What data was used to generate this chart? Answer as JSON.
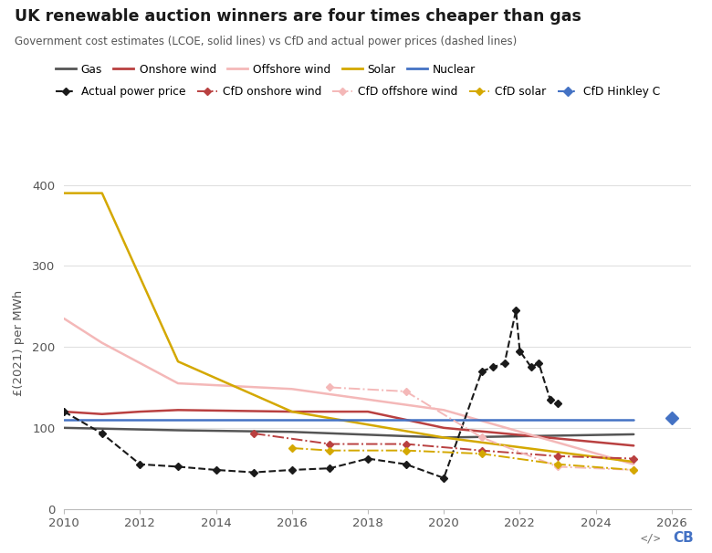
{
  "title": "UK renewable auction winners are four times cheaper than gas",
  "subtitle": "Government cost estimates (LCOE, solid lines) vs CfD and actual power prices (dashed lines)",
  "ylabel": "£(2021) per MWh",
  "xlim": [
    2010,
    2026.5
  ],
  "ylim": [
    0,
    410
  ],
  "yticks": [
    0,
    100,
    200,
    300,
    400
  ],
  "xticks": [
    2010,
    2012,
    2014,
    2016,
    2018,
    2020,
    2022,
    2024,
    2026
  ],
  "gas": {
    "x": [
      2010,
      2013,
      2016,
      2020,
      2025
    ],
    "y": [
      100,
      97,
      95,
      88,
      92
    ],
    "color": "#555555",
    "lw": 1.8
  },
  "onshore_wind": {
    "x": [
      2010,
      2011,
      2012,
      2013,
      2016,
      2018,
      2020,
      2025
    ],
    "y": [
      120,
      117,
      120,
      122,
      120,
      120,
      100,
      78
    ],
    "color": "#b94040",
    "lw": 1.8
  },
  "offshore_wind": {
    "x": [
      2010,
      2011,
      2012,
      2013,
      2016,
      2020,
      2025
    ],
    "y": [
      235,
      205,
      180,
      155,
      148,
      122,
      55
    ],
    "color": "#f4b8b8",
    "lw": 1.8
  },
  "solar": {
    "x": [
      2010,
      2011,
      2013,
      2016,
      2020,
      2025
    ],
    "y": [
      390,
      390,
      182,
      120,
      88,
      58
    ],
    "color": "#d4a800",
    "lw": 1.8
  },
  "nuclear": {
    "x": [
      2010,
      2025
    ],
    "y": [
      110,
      110
    ],
    "color": "#4472c4",
    "lw": 1.8
  },
  "actual_power_price": {
    "x": [
      2010,
      2011,
      2012,
      2013,
      2014,
      2015,
      2016,
      2017,
      2018,
      2019,
      2020,
      2021,
      2021.3,
      2021.6,
      2021.9,
      2022,
      2022.3,
      2022.5,
      2022.8,
      2023
    ],
    "y": [
      120,
      93,
      55,
      52,
      48,
      45,
      48,
      50,
      62,
      55,
      38,
      170,
      175,
      180,
      245,
      195,
      175,
      180,
      135,
      130
    ],
    "color": "#1a1a1a",
    "lw": 1.5
  },
  "cfd_onshore_wind": {
    "x": [
      2015,
      2017,
      2019,
      2021,
      2023,
      2025
    ],
    "y": [
      93,
      80,
      80,
      72,
      65,
      62
    ],
    "color": "#b94040",
    "lw": 1.4
  },
  "cfd_offshore_wind": {
    "x": [
      2017,
      2019,
      2021,
      2023,
      2025
    ],
    "y": [
      150,
      145,
      88,
      52,
      48
    ],
    "color": "#f4b8b8",
    "lw": 1.4
  },
  "cfd_solar": {
    "x": [
      2016,
      2017,
      2019,
      2021,
      2023,
      2025
    ],
    "y": [
      75,
      72,
      72,
      68,
      55,
      48
    ],
    "color": "#d4a800",
    "lw": 1.4
  },
  "cfd_hinkley": {
    "x": [
      2026
    ],
    "y": [
      112
    ],
    "color": "#4472c4",
    "lw": 1.5
  },
  "bg_color": "#ffffff",
  "grid_color": "#e0e0e0"
}
